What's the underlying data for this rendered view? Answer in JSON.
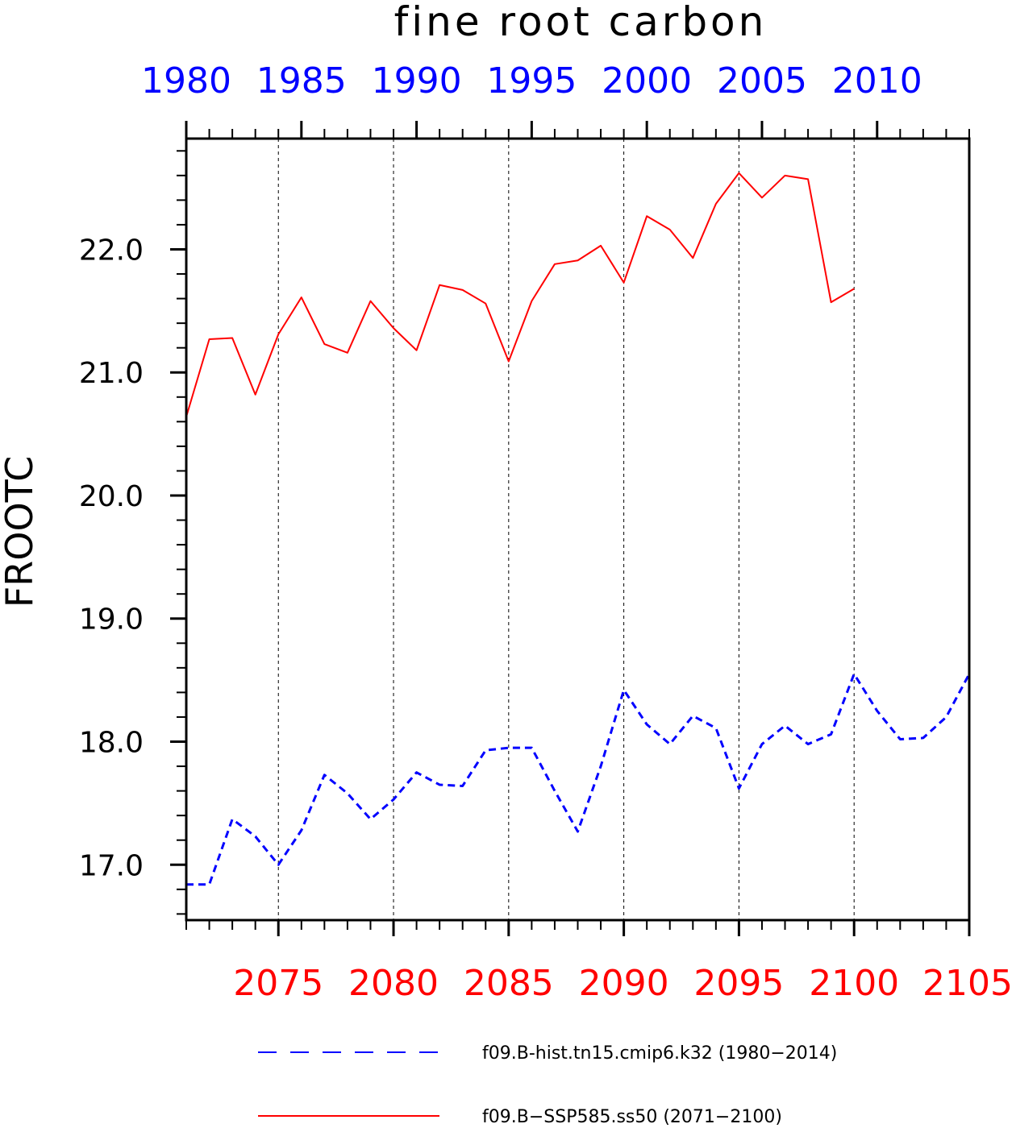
{
  "colors": {
    "hist": "#0000ff",
    "ssp": "#ff0000",
    "axis": "#000000"
  },
  "chart_data": {
    "type": "line",
    "title": "fine root carbon",
    "ylabel": "FROOTC",
    "ylim": [
      16.55,
      22.9
    ],
    "yticks": [
      17.0,
      18.0,
      19.0,
      20.0,
      21.0,
      22.0
    ],
    "ytick_labels": [
      "17.0",
      "18.0",
      "19.0",
      "20.0",
      "21.0",
      "22.0"
    ],
    "grid": "vertical dashed at major bottom ticks",
    "x_bottom": {
      "range": [
        2071,
        2105
      ],
      "ticks": [
        2075,
        2080,
        2085,
        2090,
        2095,
        2100,
        2105
      ],
      "labels": [
        "2075",
        "2080",
        "2085",
        "2090",
        "2095",
        "2100",
        "2105"
      ]
    },
    "x_top": {
      "range": [
        1980,
        2014
      ],
      "ticks": [
        1980,
        1985,
        1990,
        1995,
        2000,
        2005,
        2010
      ],
      "labels": [
        "1980",
        "1985",
        "1990",
        "1995",
        "2000",
        "2005",
        "2010"
      ]
    },
    "series": [
      {
        "name": "f09.B-hist.tn15.cmip6.k32 (1980-2014)",
        "axis": "top",
        "style": "dashed",
        "x": [
          1980,
          1981,
          1982,
          1983,
          1984,
          1985,
          1986,
          1987,
          1988,
          1989,
          1990,
          1991,
          1992,
          1993,
          1994,
          1995,
          1996,
          1997,
          1998,
          1999,
          2000,
          2001,
          2002,
          2003,
          2004,
          2005,
          2006,
          2007,
          2008,
          2009,
          2010,
          2011,
          2012,
          2013,
          2014
        ],
        "values": [
          16.84,
          16.84,
          17.37,
          17.23,
          17.0,
          17.28,
          17.73,
          17.58,
          17.37,
          17.53,
          17.75,
          17.65,
          17.64,
          17.93,
          17.95,
          17.95,
          17.6,
          17.27,
          17.8,
          18.42,
          18.14,
          17.98,
          18.21,
          18.11,
          17.62,
          17.98,
          18.13,
          17.98,
          18.06,
          18.55,
          18.25,
          18.02,
          18.03,
          18.2,
          18.55
        ]
      },
      {
        "name": "f09.B-SSP585.ss50 (2071-2100)",
        "axis": "bottom",
        "style": "solid",
        "x": [
          2071,
          2072,
          2073,
          2074,
          2075,
          2076,
          2077,
          2078,
          2079,
          2080,
          2081,
          2082,
          2083,
          2084,
          2085,
          2086,
          2087,
          2088,
          2089,
          2090,
          2091,
          2092,
          2093,
          2094,
          2095,
          2096,
          2097,
          2098,
          2099,
          2100
        ],
        "values": [
          20.64,
          21.27,
          21.28,
          20.82,
          21.31,
          21.61,
          21.23,
          21.16,
          21.58,
          21.36,
          21.18,
          21.71,
          21.67,
          21.56,
          21.09,
          21.58,
          21.88,
          21.91,
          22.03,
          21.73,
          22.27,
          22.16,
          21.93,
          22.37,
          22.62,
          22.42,
          22.6,
          22.57,
          21.57,
          21.68
        ]
      }
    ]
  },
  "legend": [
    {
      "label": "f09.B-hist.tn15.cmip6.k32 (1980−2014)"
    },
    {
      "label": "f09.B−SSP585.ss50 (2071−2100)"
    }
  ]
}
